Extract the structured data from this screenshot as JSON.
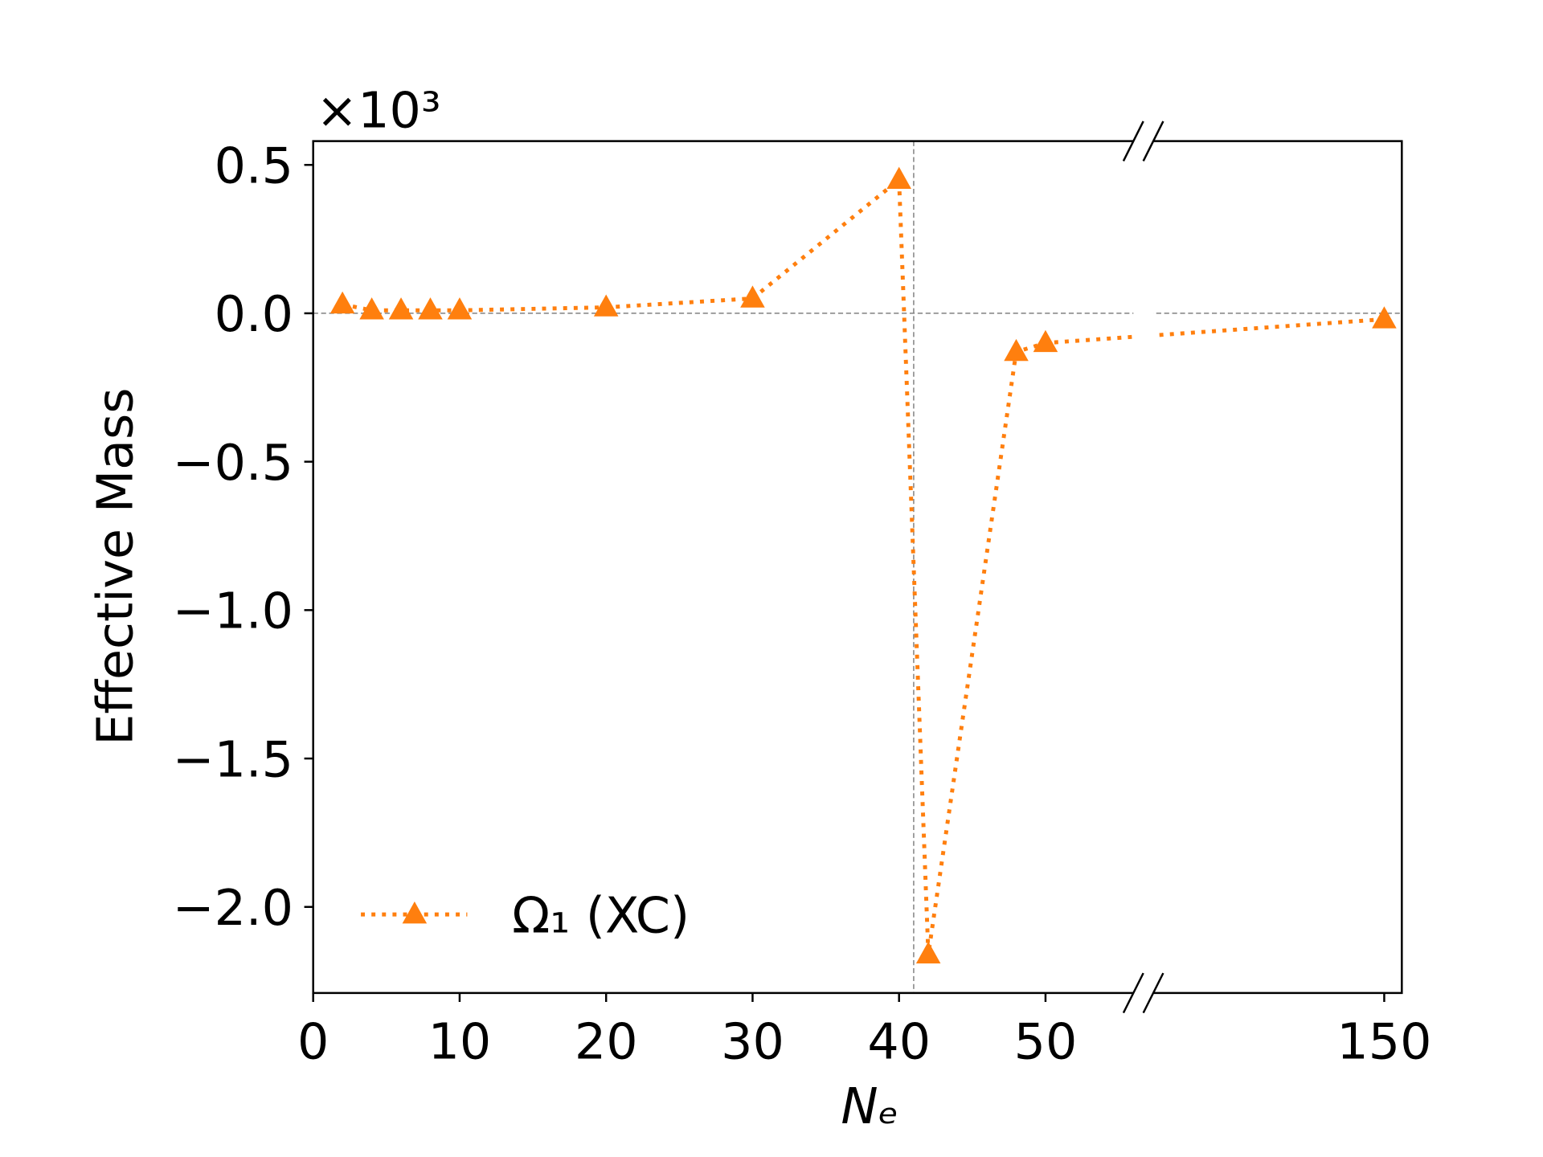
{
  "chart_data": {
    "type": "line",
    "y_label": "Effective Mass",
    "x_label": "Nₑ",
    "y_multiplier": "×10³",
    "x": [
      2,
      4,
      6,
      8,
      10,
      20,
      30,
      40,
      42,
      48,
      50,
      150
    ],
    "series": [
      {
        "name": "Ω₁ (XC)",
        "color": "#ff7f0e",
        "marker": "triangle",
        "linestyle": "dotted",
        "values": [
          0.03,
          0.01,
          0.01,
          0.01,
          0.01,
          0.02,
          0.05,
          0.45,
          -2.16,
          -0.13,
          -0.1,
          -0.02
        ]
      }
    ],
    "xlim": [
      0,
      151.2
    ],
    "xbreak": [
      56,
      134.25
    ],
    "xticks": [
      0,
      10,
      20,
      30,
      40,
      50,
      150
    ],
    "ylim": [
      -2.29,
      0.58
    ],
    "yticks": [
      {
        "value": -2,
        "label": "−2.0"
      },
      {
        "value": -1.5,
        "label": "−1.5"
      },
      {
        "value": -1,
        "label": "−1.0"
      },
      {
        "value": -0.5,
        "label": "−0.5"
      },
      {
        "value": 0,
        "label": "0.0"
      },
      0.5
    ],
    "hline": 0,
    "vline": 41,
    "legend": "lower left"
  }
}
